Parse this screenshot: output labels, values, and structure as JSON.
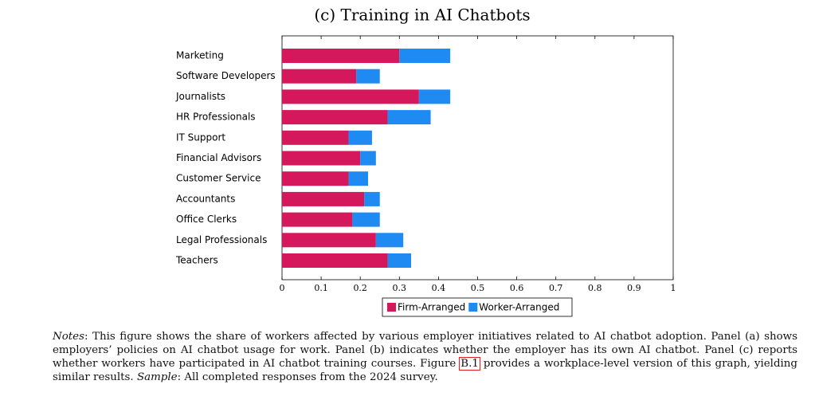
{
  "chart_data": {
    "type": "stacked-barh",
    "title": "(c) Training in AI Chatbots",
    "categories": [
      "Marketing",
      "Software Developers",
      "Journalists",
      "HR Professionals",
      "IT Support",
      "Financial Advisors",
      "Customer Service",
      "Accountants",
      "Office Clerks",
      "Legal Professionals",
      "Teachers"
    ],
    "series": [
      {
        "name": "Firm-Arranged",
        "color": "#d5175b",
        "values": [
          0.3,
          0.19,
          0.35,
          0.27,
          0.17,
          0.2,
          0.17,
          0.21,
          0.18,
          0.24,
          0.27
        ]
      },
      {
        "name": "Worker-Arranged",
        "color": "#1f8af2",
        "values": [
          0.13,
          0.06,
          0.08,
          0.11,
          0.06,
          0.04,
          0.05,
          0.04,
          0.07,
          0.07,
          0.06
        ]
      }
    ],
    "xlim": [
      0,
      1
    ],
    "xticks": [
      0,
      0.1,
      0.2,
      0.3,
      0.4,
      0.5,
      0.6,
      0.7,
      0.8,
      0.9,
      1
    ]
  },
  "notes": [
    "Notes",
    ": This figure shows the share of workers affected by various employer initiatives related to AI chatbot adoption. Panel (a) shows employers’ policies on AI chatbot usage for work. Panel (b) indicates whether the employer has its own AI chatbot. Panel (c) reports whether workers have participated in AI chatbot training courses. Figure ",
    "B.1",
    " provides a workplace-level version of this graph, yielding similar results. ",
    "Sample",
    ": All completed responses from the 2024 survey."
  ]
}
